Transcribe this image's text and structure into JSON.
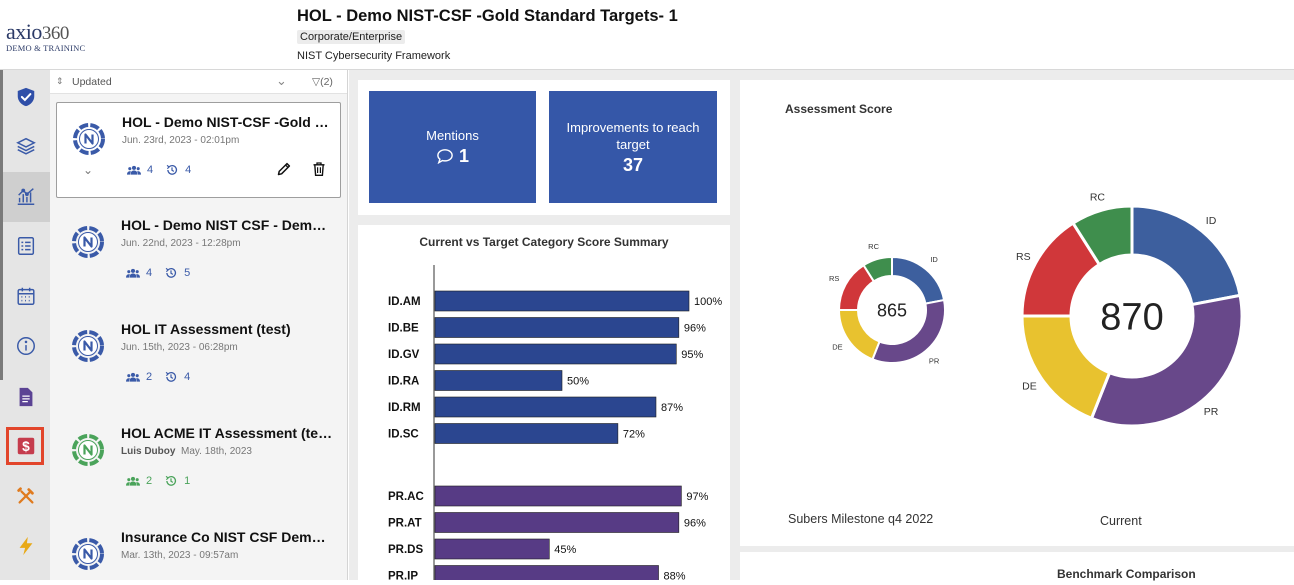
{
  "header": {
    "logo_main": "axio",
    "logo_num": "360",
    "logo_sub": "DEMO & TRAININC",
    "title": "HOL - Demo NIST-CSF -Gold Standard Targets- 1",
    "badge": "Corporate/Enterprise",
    "framework": "NIST Cybersecurity Framework"
  },
  "rail": {
    "items": [
      "shield-check",
      "layers",
      "analytics",
      "checklist",
      "calendar",
      "info",
      "document",
      "dollar",
      "tools",
      "lightning"
    ]
  },
  "list": {
    "sort_label": "Updated",
    "filter_label": "(2)",
    "cards": [
      {
        "title": "HOL - Demo NIST-CSF -Gold St...",
        "author": "",
        "date": "Jun. 23rd, 2023 - 02:01pm",
        "users": "4",
        "versions": "4",
        "color": "#3a5aa8"
      },
      {
        "title": "HOL - Demo NIST CSF - Demo ...",
        "author": "",
        "date": "Jun. 22nd, 2023 - 12:28pm",
        "users": "4",
        "versions": "5",
        "color": "#3a5aa8"
      },
      {
        "title": "HOL IT Assessment (test)",
        "author": "",
        "date": "Jun. 15th, 2023 - 06:28pm",
        "users": "2",
        "versions": "4",
        "color": "#3a5aa8"
      },
      {
        "title": "HOL ACME IT Assessment (test)",
        "author": "Luis Duboy",
        "date": "May. 18th, 2023",
        "users": "2",
        "versions": "1",
        "color": "#4aa35a"
      },
      {
        "title": "Insurance Co NIST CSF Demo S...",
        "author": "",
        "date": "Mar. 13th, 2023 - 09:57am",
        "users": "",
        "versions": "",
        "color": "#3a5aa8"
      }
    ]
  },
  "kpis": {
    "mentions_label": "Mentions",
    "mentions_value": "1",
    "improve_label": "Improvements to reach target",
    "improve_value": "37"
  },
  "bar_title": "Current vs Target Category Score Summary",
  "assessment_title": "Assessment Score",
  "benchmark_title": "Benchmark Comparison",
  "chart_data": [
    {
      "type": "bar",
      "orientation": "horizontal",
      "title": "Current vs Target Category Score Summary",
      "xlim": [
        0,
        100
      ],
      "categories": [
        "ID.AM",
        "ID.BE",
        "ID.GV",
        "ID.RA",
        "ID.RM",
        "ID.SC",
        "PR.AC",
        "PR.AT",
        "PR.DS",
        "PR.IP"
      ],
      "values": [
        100,
        96,
        95,
        50,
        87,
        72,
        97,
        96,
        45,
        88
      ],
      "labels": [
        "100%",
        "96%",
        "95%",
        "50%",
        "87%",
        "72%",
        "97%",
        "96%",
        "45%",
        "88%"
      ],
      "groups": [
        "ID",
        "ID",
        "ID",
        "ID",
        "ID",
        "ID",
        "PR",
        "PR",
        "PR",
        "PR"
      ],
      "colors": {
        "ID": "#2b4690",
        "PR": "#573b85"
      }
    },
    {
      "type": "pie",
      "donut": true,
      "title": "Subers Milestone q4 2022",
      "center_value": "865",
      "slices": [
        {
          "label": "ID",
          "value": 22,
          "color": "#3d5f9e"
        },
        {
          "label": "PR",
          "value": 34,
          "color": "#68488a"
        },
        {
          "label": "DE",
          "value": 19,
          "color": "#e8c22f"
        },
        {
          "label": "RS",
          "value": 16,
          "color": "#d0373a"
        },
        {
          "label": "RC",
          "value": 9,
          "color": "#3f8e4d"
        }
      ]
    },
    {
      "type": "pie",
      "donut": true,
      "title": "Current",
      "center_value": "870",
      "slices": [
        {
          "label": "ID",
          "value": 22,
          "color": "#3d5f9e"
        },
        {
          "label": "PR",
          "value": 34,
          "color": "#68488a"
        },
        {
          "label": "DE",
          "value": 19,
          "color": "#e8c22f"
        },
        {
          "label": "RS",
          "value": 16,
          "color": "#d0373a"
        },
        {
          "label": "RC",
          "value": 9,
          "color": "#3f8e4d"
        }
      ]
    }
  ]
}
